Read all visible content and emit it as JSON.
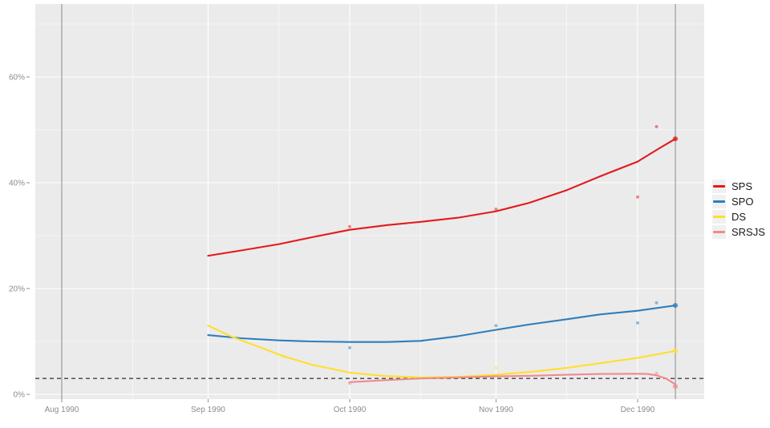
{
  "chart_data": {
    "type": "line",
    "title": "",
    "xlabel": "",
    "ylabel": "",
    "legend_position": "right",
    "x_axis": {
      "origin": "1990-08-01",
      "ticks": [
        {
          "date": "1990-08-01",
          "label": "Aug 1990"
        },
        {
          "date": "1990-09-01",
          "label": "Sep 1990"
        },
        {
          "date": "1990-10-01",
          "label": "Oct 1990"
        },
        {
          "date": "1990-11-01",
          "label": "Nov 1990"
        },
        {
          "date": "1990-12-01",
          "label": "Dec 1990"
        }
      ],
      "minor_gridline_dates": [
        "1990-08-16",
        "1990-09-16",
        "1990-10-16",
        "1990-11-16"
      ]
    },
    "y_axis": {
      "unit": "%",
      "range": [
        -2,
        73
      ],
      "ticks": [
        {
          "value": 0,
          "label": "0%"
        },
        {
          "value": 20,
          "label": "20%"
        },
        {
          "value": 40,
          "label": "40%"
        },
        {
          "value": 60,
          "label": "60%"
        }
      ],
      "minor_gridline_values": [
        10,
        30,
        50,
        70
      ]
    },
    "reference_lines": {
      "vertical_dates": [
        "1990-08-01",
        "1990-12-09"
      ],
      "horizontal_dashed_value": 3
    },
    "series": [
      {
        "name": "SPS",
        "color": "#e31a1c",
        "trend": [
          [
            "1990-09-01",
            26.2
          ],
          [
            "1990-09-08",
            27.2
          ],
          [
            "1990-09-16",
            28.4
          ],
          [
            "1990-09-23",
            29.7
          ],
          [
            "1990-10-01",
            31.1
          ],
          [
            "1990-10-09",
            32.0
          ],
          [
            "1990-10-16",
            32.6
          ],
          [
            "1990-10-24",
            33.4
          ],
          [
            "1990-11-01",
            34.6
          ],
          [
            "1990-11-08",
            36.2
          ],
          [
            "1990-11-16",
            38.6
          ],
          [
            "1990-11-23",
            41.2
          ],
          [
            "1990-12-01",
            44.0
          ],
          [
            "1990-12-05",
            46.2
          ],
          [
            "1990-12-09",
            48.3
          ]
        ],
        "polls": [
          [
            "1990-10-01",
            31.7
          ],
          [
            "1990-11-01",
            35.0
          ],
          [
            "1990-12-01",
            37.3
          ],
          [
            "1990-12-05",
            50.6
          ]
        ],
        "final": [
          "1990-12-09",
          48.3
        ]
      },
      {
        "name": "SPO",
        "color": "#2e7ebc",
        "trend": [
          [
            "1990-09-01",
            11.2
          ],
          [
            "1990-09-08",
            10.6
          ],
          [
            "1990-09-16",
            10.2
          ],
          [
            "1990-09-23",
            10.0
          ],
          [
            "1990-10-01",
            9.9
          ],
          [
            "1990-10-09",
            9.9
          ],
          [
            "1990-10-16",
            10.1
          ],
          [
            "1990-10-24",
            11.0
          ],
          [
            "1990-11-01",
            12.2
          ],
          [
            "1990-11-08",
            13.2
          ],
          [
            "1990-11-16",
            14.2
          ],
          [
            "1990-11-23",
            15.1
          ],
          [
            "1990-12-01",
            15.8
          ],
          [
            "1990-12-09",
            16.8
          ]
        ],
        "polls": [
          [
            "1990-10-01",
            8.8
          ],
          [
            "1990-11-01",
            13.0
          ],
          [
            "1990-12-01",
            13.5
          ],
          [
            "1990-12-05",
            17.3
          ]
        ],
        "final": [
          "1990-12-09",
          16.8
        ]
      },
      {
        "name": "DS",
        "color": "#ffdf2b",
        "trend": [
          [
            "1990-09-01",
            13.0
          ],
          [
            "1990-09-06",
            10.9
          ],
          [
            "1990-09-12",
            8.9
          ],
          [
            "1990-09-17",
            7.2
          ],
          [
            "1990-09-23",
            5.6
          ],
          [
            "1990-10-01",
            4.1
          ],
          [
            "1990-10-08",
            3.5
          ],
          [
            "1990-10-16",
            3.2
          ],
          [
            "1990-10-24",
            3.3
          ],
          [
            "1990-11-01",
            3.7
          ],
          [
            "1990-11-09",
            4.3
          ],
          [
            "1990-11-16",
            5.0
          ],
          [
            "1990-11-24",
            6.0
          ],
          [
            "1990-12-01",
            6.9
          ],
          [
            "1990-12-09",
            8.2
          ]
        ],
        "polls": [
          [
            "1990-09-17",
            7.2
          ],
          [
            "1990-11-01",
            5.0
          ]
        ],
        "final": [
          "1990-12-09",
          8.2
        ]
      },
      {
        "name": "SRSJS",
        "color": "#ef8a90",
        "trend": [
          [
            "1990-10-01",
            2.3
          ],
          [
            "1990-10-09",
            2.7
          ],
          [
            "1990-10-16",
            3.0
          ],
          [
            "1990-10-24",
            3.2
          ],
          [
            "1990-11-01",
            3.4
          ],
          [
            "1990-11-08",
            3.5
          ],
          [
            "1990-11-16",
            3.7
          ],
          [
            "1990-11-23",
            3.85
          ],
          [
            "1990-12-01",
            3.9
          ],
          [
            "1990-12-03",
            3.85
          ],
          [
            "1990-12-05",
            3.6
          ],
          [
            "1990-12-07",
            3.0
          ],
          [
            "1990-12-09",
            1.9
          ]
        ],
        "polls": [
          [
            "1990-10-01",
            2.1
          ],
          [
            "1990-12-05",
            4.0
          ]
        ],
        "final": [
          "1990-12-09",
          1.5
        ]
      }
    ]
  },
  "colors": {
    "page_background": "#ffffff",
    "panel_background": "#ebebeb",
    "gridline": "#ffffff",
    "axis_text": "#8c8c8c",
    "reference_line": "#9a9a9a",
    "threshold_dash": "#404040",
    "legend_key_background": "#f0f0f0"
  }
}
